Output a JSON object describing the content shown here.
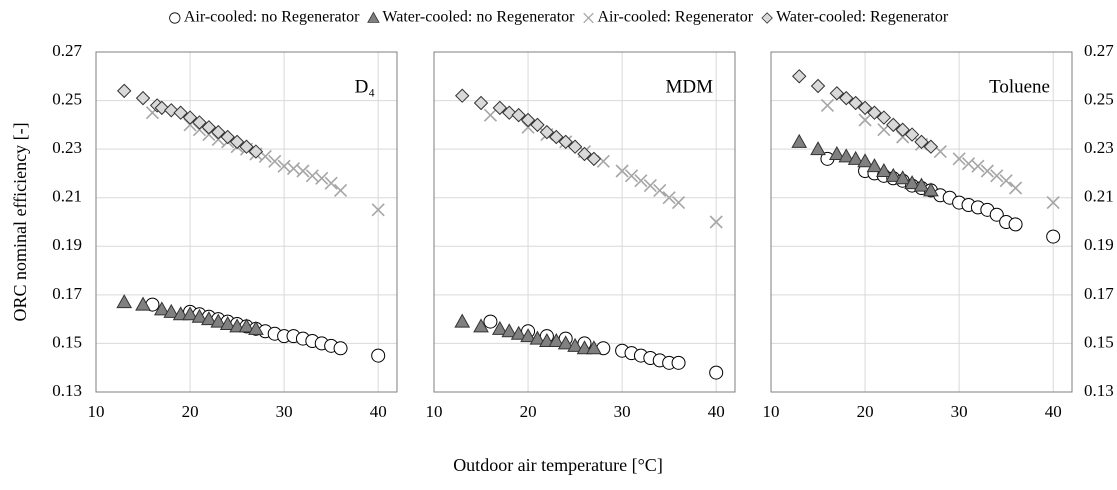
{
  "chart_data": [
    {
      "type": "scatter",
      "annotation": "D₄",
      "ylabel": "ORC nominal efficiency [-]",
      "xlim": [
        10,
        42
      ],
      "xticks": [
        10,
        20,
        30,
        40
      ],
      "ylim": [
        0.13,
        0.27
      ],
      "yticks": [
        0.13,
        0.15,
        0.17,
        0.19,
        0.21,
        0.23,
        0.25,
        0.27
      ],
      "grid": true,
      "series": [
        {
          "name": "Air-cooled: no Regenerator",
          "marker": "circle",
          "color": "#ffffff",
          "x": [
            16,
            20,
            21,
            22,
            23,
            24,
            25,
            26,
            27,
            28,
            29,
            30,
            31,
            32,
            33,
            34,
            35,
            36,
            40
          ],
          "values": [
            0.166,
            0.163,
            0.162,
            0.161,
            0.16,
            0.159,
            0.158,
            0.157,
            0.156,
            0.155,
            0.154,
            0.153,
            0.153,
            0.152,
            0.151,
            0.15,
            0.149,
            0.148,
            0.145
          ]
        },
        {
          "name": "Water-cooled: no Regenerator",
          "marker": "triangle",
          "color": "#808080",
          "x": [
            13,
            15,
            17,
            18,
            19,
            20,
            21,
            22,
            23,
            24,
            25,
            26,
            27
          ],
          "values": [
            0.167,
            0.166,
            0.164,
            0.163,
            0.162,
            0.162,
            0.161,
            0.16,
            0.159,
            0.158,
            0.157,
            0.157,
            0.156
          ]
        },
        {
          "name": "Air-cooled: Regenerator",
          "marker": "x",
          "color": "#a6a6a6",
          "x": [
            16,
            20,
            21,
            22,
            23,
            24,
            25,
            26,
            27,
            28,
            29,
            30,
            31,
            32,
            33,
            34,
            35,
            36,
            40
          ],
          "values": [
            0.245,
            0.24,
            0.238,
            0.236,
            0.234,
            0.233,
            0.231,
            0.23,
            0.228,
            0.227,
            0.225,
            0.223,
            0.222,
            0.221,
            0.219,
            0.218,
            0.216,
            0.213,
            0.205
          ]
        },
        {
          "name": "Water-cooled: Regenerator",
          "marker": "diamond",
          "color": "#d9d9d9",
          "x": [
            13,
            15,
            16.5,
            17,
            18,
            19,
            20,
            21,
            22,
            23,
            24,
            25,
            26,
            27
          ],
          "values": [
            0.254,
            0.251,
            0.248,
            0.247,
            0.246,
            0.245,
            0.243,
            0.241,
            0.239,
            0.237,
            0.235,
            0.233,
            0.231,
            0.229
          ]
        }
      ]
    },
    {
      "type": "scatter",
      "annotation": "MDM",
      "xlabel": "Outdoor air temperature [°C]",
      "xlim": [
        10,
        42
      ],
      "xticks": [
        10,
        20,
        30,
        40
      ],
      "ylim": [
        0.13,
        0.27
      ],
      "yticks": [
        0.13,
        0.15,
        0.17,
        0.19,
        0.21,
        0.23,
        0.25,
        0.27
      ],
      "grid": true,
      "series": [
        {
          "name": "Air-cooled: no Regenerator",
          "marker": "circle",
          "color": "#ffffff",
          "x": [
            16,
            20,
            22,
            24,
            26,
            28,
            30,
            31,
            32,
            33,
            34,
            35,
            36,
            40
          ],
          "values": [
            0.159,
            0.155,
            0.153,
            0.152,
            0.15,
            0.148,
            0.147,
            0.146,
            0.145,
            0.144,
            0.143,
            0.142,
            0.142,
            0.138
          ]
        },
        {
          "name": "Water-cooled: no Regenerator",
          "marker": "triangle",
          "color": "#808080",
          "x": [
            13,
            15,
            17,
            18,
            19,
            20,
            21,
            22,
            23,
            24,
            25,
            26,
            27
          ],
          "values": [
            0.159,
            0.157,
            0.156,
            0.155,
            0.154,
            0.153,
            0.152,
            0.151,
            0.151,
            0.15,
            0.149,
            0.148,
            0.148
          ]
        },
        {
          "name": "Air-cooled: Regenerator",
          "marker": "x",
          "color": "#a6a6a6",
          "x": [
            16,
            20,
            22,
            24,
            26,
            28,
            30,
            31,
            32,
            33,
            34,
            35,
            36,
            40
          ],
          "values": [
            0.244,
            0.239,
            0.236,
            0.233,
            0.229,
            0.225,
            0.221,
            0.219,
            0.217,
            0.215,
            0.213,
            0.21,
            0.208,
            0.2
          ]
        },
        {
          "name": "Water-cooled: Regenerator",
          "marker": "diamond",
          "color": "#d9d9d9",
          "x": [
            13,
            15,
            17,
            18,
            19,
            20,
            21,
            22,
            23,
            24,
            25,
            26,
            27
          ],
          "values": [
            0.252,
            0.249,
            0.247,
            0.245,
            0.244,
            0.242,
            0.24,
            0.237,
            0.235,
            0.233,
            0.231,
            0.228,
            0.226
          ]
        }
      ]
    },
    {
      "type": "scatter",
      "annotation": "Toluene",
      "xlim": [
        10,
        42
      ],
      "xticks": [
        10,
        20,
        30,
        40
      ],
      "ylim": [
        0.13,
        0.27
      ],
      "yticks": [
        0.13,
        0.15,
        0.17,
        0.19,
        0.21,
        0.23,
        0.25,
        0.27
      ],
      "grid": true,
      "series": [
        {
          "name": "Air-cooled: no Regenerator",
          "marker": "circle",
          "color": "#ffffff",
          "x": [
            16,
            20,
            21,
            22,
            23,
            24,
            25,
            26,
            27,
            28,
            29,
            30,
            31,
            32,
            33,
            34,
            35,
            36,
            40
          ],
          "values": [
            0.226,
            0.221,
            0.22,
            0.219,
            0.218,
            0.217,
            0.215,
            0.214,
            0.213,
            0.211,
            0.21,
            0.208,
            0.207,
            0.206,
            0.205,
            0.203,
            0.2,
            0.199,
            0.194
          ]
        },
        {
          "name": "Water-cooled: no Regenerator",
          "marker": "triangle",
          "color": "#808080",
          "x": [
            13,
            15,
            17,
            18,
            19,
            20,
            21,
            22,
            23,
            24,
            25,
            26,
            27
          ],
          "values": [
            0.233,
            0.23,
            0.228,
            0.227,
            0.226,
            0.225,
            0.223,
            0.221,
            0.219,
            0.218,
            0.216,
            0.215,
            0.213
          ]
        },
        {
          "name": "Air-cooled: Regenerator",
          "marker": "x",
          "color": "#a6a6a6",
          "x": [
            16,
            20,
            22,
            24,
            26,
            28,
            30,
            31,
            32,
            33,
            34,
            35,
            36,
            40
          ],
          "values": [
            0.248,
            0.242,
            0.238,
            0.235,
            0.232,
            0.229,
            0.226,
            0.224,
            0.223,
            0.221,
            0.219,
            0.217,
            0.214,
            0.208
          ]
        },
        {
          "name": "Water-cooled: Regenerator",
          "marker": "diamond",
          "color": "#d9d9d9",
          "x": [
            13,
            15,
            17,
            18,
            19,
            20,
            21,
            22,
            23,
            24,
            25,
            26,
            27
          ],
          "values": [
            0.26,
            0.256,
            0.253,
            0.251,
            0.249,
            0.247,
            0.245,
            0.243,
            0.24,
            0.238,
            0.236,
            0.233,
            0.231
          ]
        }
      ]
    }
  ]
}
